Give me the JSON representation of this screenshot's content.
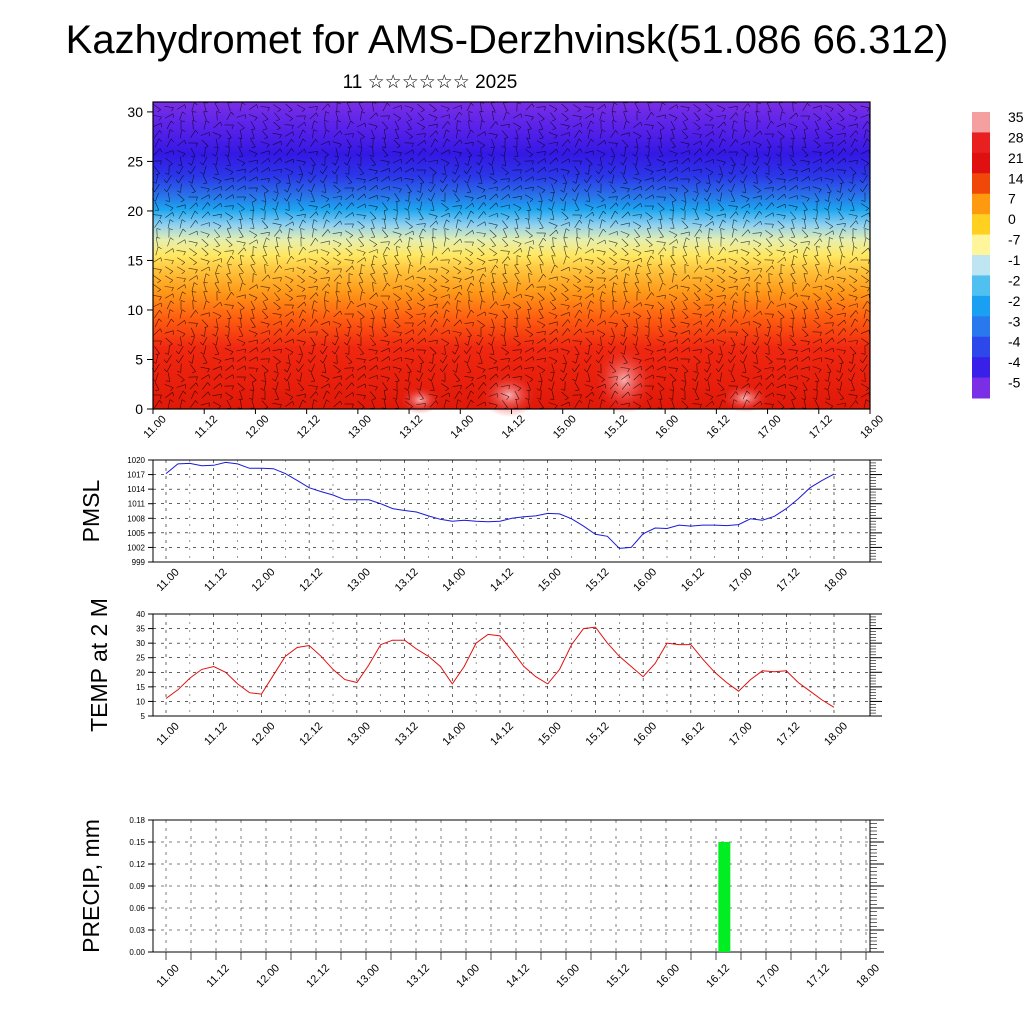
{
  "page": {
    "title": "Kazhydromet for AMS-Derzhvinsk(51.086 66.312)",
    "subtitle": "11 ☆☆☆☆☆☆ 2025"
  },
  "colors": {
    "pmsl_line": "#1a1ad8",
    "temp_line": "#e01010",
    "precip_bar": "#00ee22",
    "grid": "#000000"
  },
  "chart_data": [
    {
      "id": "cross_section",
      "type": "heatmap",
      "title": "",
      "xlabel": "",
      "ylabel": "",
      "x_tick_labels": [
        "11.00",
        "11.12",
        "12.00",
        "12.12",
        "13.00",
        "13.12",
        "14.00",
        "14.12",
        "15.00",
        "15.12",
        "16.00",
        "16.12",
        "17.00",
        "17.12",
        "18.00"
      ],
      "y_ticks": [
        0,
        5,
        10,
        15,
        20,
        25,
        30
      ],
      "ylim": [
        0,
        31
      ],
      "colorbar_labels": [
        "35",
        "28",
        "21",
        "14",
        "7",
        "0",
        "-7",
        "-1",
        "-2",
        "-2",
        "-3",
        "-4",
        "-4",
        "-5"
      ],
      "colorbar_colors": [
        "#f5a0a0",
        "#e82020",
        "#e01010",
        "#f04808",
        "#ff9a10",
        "#ffd020",
        "#fff59a",
        "#bfe4f2",
        "#4fc0f0",
        "#1aa0f2",
        "#2a78ee",
        "#2d48ea",
        "#3820e8",
        "#7a2ee6"
      ],
      "overlay": "wind barbs"
    },
    {
      "id": "pmsl",
      "type": "line",
      "ylabel": "PMSL",
      "x_tick_labels": [
        "11.00",
        "11.12",
        "12.00",
        "12.12",
        "13.00",
        "13.12",
        "14.00",
        "14.12",
        "15.00",
        "15.12",
        "16.00",
        "16.12",
        "17.00",
        "17.12",
        "18.00"
      ],
      "y_ticks": [
        999,
        1002,
        1005,
        1008,
        1011,
        1014,
        1017,
        1020
      ],
      "ylim": [
        999,
        1020
      ],
      "x_hours": [
        0,
        3,
        6,
        9,
        12,
        15,
        18,
        21,
        24,
        27,
        30,
        33,
        36,
        39,
        42,
        45,
        48,
        51,
        54,
        57,
        60,
        63,
        66,
        69,
        72,
        75,
        78,
        81,
        84,
        87,
        90,
        93,
        96,
        99,
        102,
        105,
        108,
        111,
        114,
        117,
        120,
        123,
        126,
        129,
        132,
        135,
        138,
        141,
        144,
        147,
        150,
        153,
        156,
        159,
        162,
        165,
        168
      ],
      "values": [
        1017.2,
        1019.2,
        1019.3,
        1018.8,
        1018.9,
        1019.5,
        1019.2,
        1018.3,
        1018.3,
        1018.2,
        1017.2,
        1015.8,
        1014.3,
        1013.5,
        1012.8,
        1011.8,
        1011.8,
        1011.8,
        1011.0,
        1010.0,
        1009.6,
        1009.3,
        1008.5,
        1007.8,
        1007.4,
        1007.6,
        1007.4,
        1007.3,
        1007.4,
        1008.0,
        1008.3,
        1008.5,
        1009.0,
        1008.9,
        1007.9,
        1006.4,
        1004.7,
        1004.3,
        1001.8,
        1002.0,
        1004.8,
        1006.0,
        1005.9,
        1006.6,
        1006.4,
        1006.6,
        1006.6,
        1006.5,
        1006.7,
        1007.9,
        1007.6,
        1008.4,
        1010.0,
        1012.0,
        1014.3,
        1015.8,
        1017.1
      ]
    },
    {
      "id": "temp2m",
      "type": "line",
      "ylabel": "TEMP at 2 M",
      "x_tick_labels": [
        "11.00",
        "11.12",
        "12.00",
        "12.12",
        "13.00",
        "13.12",
        "14.00",
        "14.12",
        "15.00",
        "15.12",
        "16.00",
        "16.12",
        "17.00",
        "17.12",
        "18.00"
      ],
      "y_ticks": [
        5,
        10,
        15,
        20,
        25,
        30,
        35,
        40
      ],
      "ylim": [
        5,
        40
      ],
      "x_hours": [
        0,
        3,
        6,
        9,
        12,
        15,
        18,
        21,
        24,
        27,
        30,
        33,
        36,
        39,
        42,
        45,
        48,
        51,
        54,
        57,
        60,
        63,
        66,
        69,
        72,
        75,
        78,
        81,
        84,
        87,
        90,
        93,
        96,
        99,
        102,
        105,
        108,
        111,
        114,
        117,
        120,
        123,
        126,
        129,
        132,
        135,
        138,
        141,
        144,
        147,
        150,
        153,
        156,
        159,
        162,
        165,
        168
      ],
      "values": [
        11,
        14,
        18,
        21,
        22,
        20,
        16,
        13,
        12.5,
        19,
        25.5,
        28.5,
        29.2,
        25.5,
        21,
        17.5,
        16.5,
        22.5,
        29.5,
        31,
        31,
        28,
        25.5,
        22,
        16,
        22,
        30,
        33,
        32.5,
        27.5,
        22,
        18.5,
        16,
        21,
        29.5,
        35,
        35.5,
        30,
        25.5,
        22,
        18.5,
        23,
        30,
        29.5,
        29.5,
        24.5,
        20,
        16.5,
        13.5,
        17.5,
        20.5,
        20.2,
        20.5,
        16.5,
        13.5,
        10.5,
        8
      ]
    },
    {
      "id": "precip",
      "type": "bar",
      "ylabel": "PRECIP, mm",
      "x_tick_labels": [
        "11.00",
        "11.12",
        "12.00",
        "12.12",
        "13.00",
        "13.12",
        "14.00",
        "14.12",
        "15.00",
        "15.12",
        "16.00",
        "16.12",
        "17.00",
        "17.12",
        "18.00"
      ],
      "y_tick_labels": [
        "0.00",
        "0.03",
        "0.06",
        "0.09",
        "0.12",
        "0.15",
        "0.18"
      ],
      "ylim": [
        0,
        0.18
      ],
      "bars": [
        {
          "x_hours": 134,
          "value": 0.15
        }
      ]
    }
  ]
}
